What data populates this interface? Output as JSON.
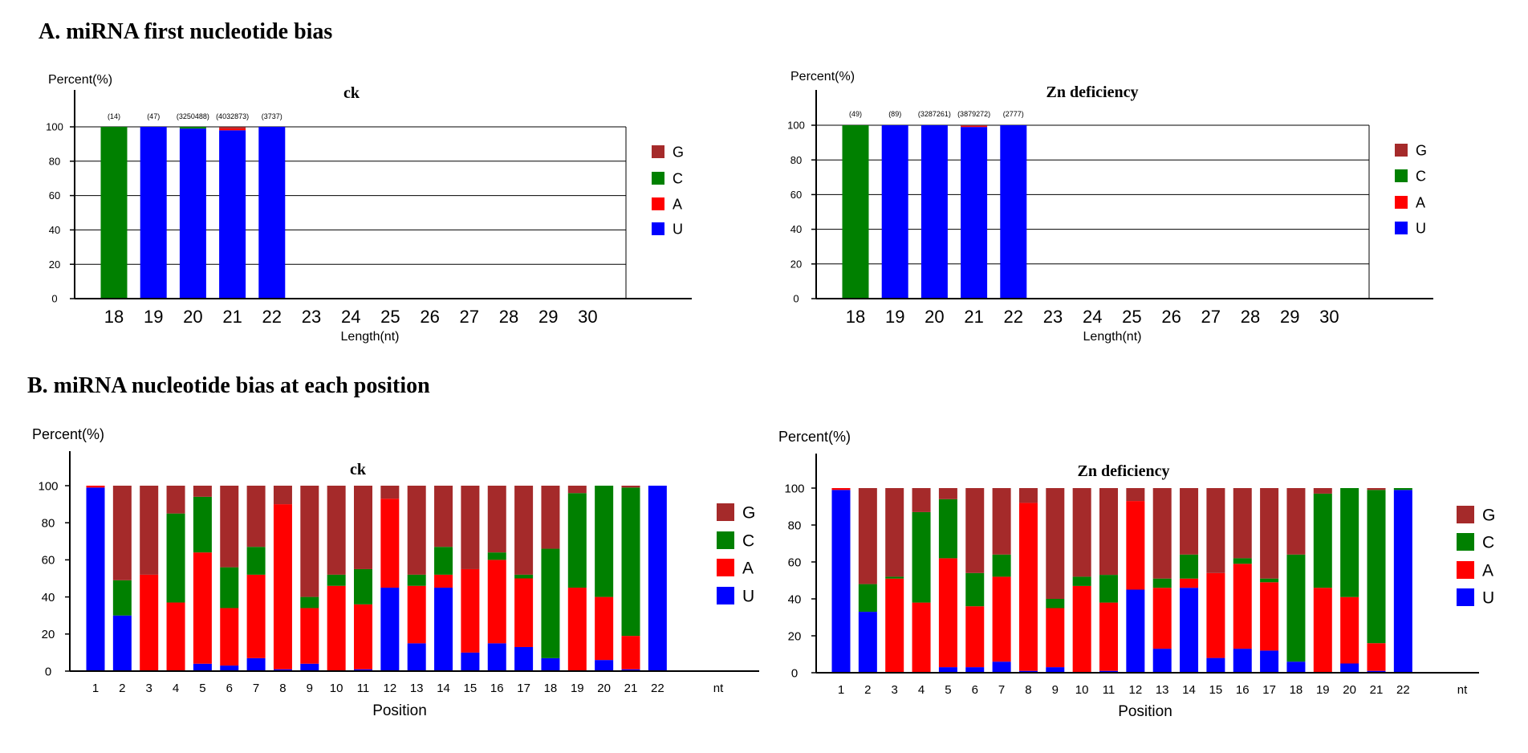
{
  "titles": {
    "a": "A. miRNA first nucleotide bias",
    "b": "B. miRNA nucleotide bias at each position"
  },
  "colors": {
    "G": "#a52a2a",
    "C": "#008000",
    "A": "#ff0000",
    "U": "#0000ff"
  },
  "chart_data": [
    {
      "type": "bar",
      "stacked": true,
      "title": "ck",
      "ylabel": "Percent(%)",
      "xlabel": "Length(nt)",
      "ylim": [
        0,
        100
      ],
      "yticks": [
        0,
        20,
        40,
        60,
        80,
        100
      ],
      "grid": true,
      "legend_position": "right",
      "categories": [
        "18",
        "19",
        "20",
        "21",
        "22",
        "23",
        "24",
        "25",
        "26",
        "27",
        "28",
        "29",
        "30"
      ],
      "counts": [
        "(14)",
        "(47)",
        "(3250488)",
        "(4032873)",
        "(3737)",
        "",
        "",
        "",
        "",
        "",
        "",
        "",
        ""
      ],
      "series": [
        {
          "name": "U",
          "values": [
            0,
            100,
            99,
            98,
            100,
            0,
            0,
            0,
            0,
            0,
            0,
            0,
            0
          ]
        },
        {
          "name": "A",
          "values": [
            0,
            0,
            0,
            1,
            0,
            0,
            0,
            0,
            0,
            0,
            0,
            0,
            0
          ]
        },
        {
          "name": "C",
          "values": [
            100,
            0,
            1,
            0,
            0,
            0,
            0,
            0,
            0,
            0,
            0,
            0,
            0
          ]
        },
        {
          "name": "G",
          "values": [
            0,
            0,
            0,
            1,
            0,
            0,
            0,
            0,
            0,
            0,
            0,
            0,
            0
          ]
        }
      ]
    },
    {
      "type": "bar",
      "stacked": true,
      "title": "Zn deficiency",
      "ylabel": "Percent(%)",
      "xlabel": "Length(nt)",
      "ylim": [
        0,
        100
      ],
      "yticks": [
        0,
        20,
        40,
        60,
        80,
        100
      ],
      "grid": true,
      "legend_position": "right",
      "categories": [
        "18",
        "19",
        "20",
        "21",
        "22",
        "23",
        "24",
        "25",
        "26",
        "27",
        "28",
        "29",
        "30"
      ],
      "counts": [
        "(49)",
        "(89)",
        "(3287261)",
        "(3879272)",
        "(2777)",
        "",
        "",
        "",
        "",
        "",
        "",
        "",
        ""
      ],
      "series": [
        {
          "name": "U",
          "values": [
            0,
            100,
            100,
            99,
            100,
            0,
            0,
            0,
            0,
            0,
            0,
            0,
            0
          ]
        },
        {
          "name": "A",
          "values": [
            0,
            0,
            0,
            0.5,
            0,
            0,
            0,
            0,
            0,
            0,
            0,
            0,
            0
          ]
        },
        {
          "name": "C",
          "values": [
            100,
            0,
            0,
            0,
            0,
            0,
            0,
            0,
            0,
            0,
            0,
            0,
            0
          ]
        },
        {
          "name": "G",
          "values": [
            0,
            0,
            0,
            0.5,
            0,
            0,
            0,
            0,
            0,
            0,
            0,
            0,
            0
          ]
        }
      ]
    },
    {
      "type": "bar",
      "stacked": true,
      "title": "ck",
      "ylabel": "Percent(%)",
      "xlabel": "Position",
      "x_unit_label": "nt",
      "ylim": [
        0,
        100
      ],
      "yticks": [
        0,
        20,
        40,
        60,
        80,
        100
      ],
      "grid": false,
      "legend_position": "right",
      "categories": [
        "1",
        "2",
        "3",
        "4",
        "5",
        "6",
        "7",
        "8",
        "9",
        "10",
        "11",
        "12",
        "13",
        "14",
        "15",
        "16",
        "17",
        "18",
        "19",
        "20",
        "21",
        "22"
      ],
      "series": [
        {
          "name": "U",
          "values": [
            99,
            30,
            0,
            0,
            4,
            3,
            7,
            1,
            4,
            0,
            1,
            45,
            15,
            45,
            10,
            15,
            13,
            7,
            0,
            6,
            1,
            100
          ]
        },
        {
          "name": "A",
          "values": [
            1,
            0,
            52,
            37,
            60,
            31,
            45,
            89,
            30,
            46,
            35,
            48,
            31,
            7,
            45,
            45,
            37,
            0,
            45,
            34,
            18,
            0
          ]
        },
        {
          "name": "C",
          "values": [
            0,
            19,
            0,
            48,
            30,
            22,
            15,
            0,
            6,
            6,
            19,
            0,
            6,
            15,
            0,
            4,
            2,
            59,
            51,
            60,
            80,
            0
          ]
        },
        {
          "name": "G",
          "values": [
            0,
            51,
            48,
            15,
            6,
            44,
            33,
            10,
            60,
            48,
            45,
            7,
            48,
            33,
            45,
            36,
            48,
            34,
            4,
            0,
            1,
            0
          ]
        }
      ]
    },
    {
      "type": "bar",
      "stacked": true,
      "title": "Zn deficiency",
      "ylabel": "Percent(%)",
      "xlabel": "Position",
      "x_unit_label": "nt",
      "ylim": [
        0,
        100
      ],
      "yticks": [
        0,
        20,
        40,
        60,
        80,
        100
      ],
      "grid": false,
      "legend_position": "right",
      "categories": [
        "1",
        "2",
        "3",
        "4",
        "5",
        "6",
        "7",
        "8",
        "9",
        "10",
        "11",
        "12",
        "13",
        "14",
        "15",
        "16",
        "17",
        "18",
        "19",
        "20",
        "21",
        "22"
      ],
      "series": [
        {
          "name": "U",
          "values": [
            99,
            33,
            0,
            0,
            3,
            3,
            6,
            1,
            3,
            0,
            1,
            45,
            13,
            46,
            8,
            13,
            12,
            6,
            0,
            5,
            1,
            99
          ]
        },
        {
          "name": "A",
          "values": [
            1,
            0,
            51,
            38,
            59,
            33,
            46,
            91,
            32,
            47,
            37,
            48,
            33,
            5,
            46,
            46,
            37,
            0,
            46,
            36,
            15,
            0
          ]
        },
        {
          "name": "C",
          "values": [
            0,
            15,
            1,
            49,
            32,
            18,
            12,
            0,
            5,
            5,
            15,
            0,
            5,
            13,
            0,
            3,
            2,
            58,
            51,
            59,
            83,
            1
          ]
        },
        {
          "name": "G",
          "values": [
            0,
            52,
            48,
            13,
            6,
            46,
            36,
            8,
            60,
            48,
            47,
            7,
            49,
            36,
            46,
            38,
            49,
            36,
            3,
            0,
            1,
            0
          ]
        }
      ]
    }
  ]
}
